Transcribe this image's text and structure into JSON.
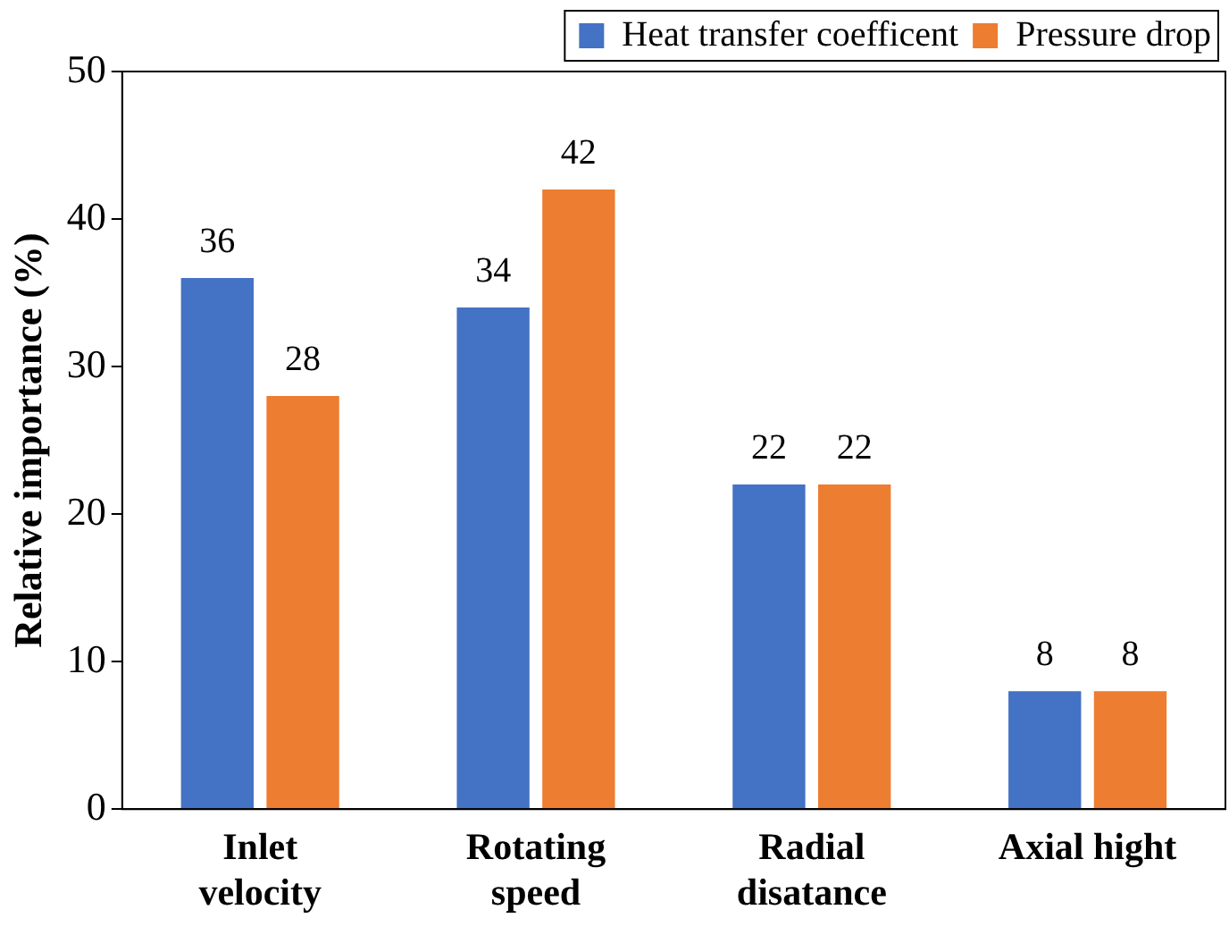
{
  "chart_data": {
    "type": "bar",
    "ylabel": "Relative importance (%)",
    "categories": [
      "Inlet\nvelocity",
      "Rotating\nspeed",
      "Radial\ndisatance",
      "Axial hight"
    ],
    "series": [
      {
        "name": "Heat transfer coefficent",
        "color": "#4472c4",
        "values": [
          36,
          34,
          22,
          8
        ]
      },
      {
        "name": "Pressure drop",
        "color": "#ed7d31",
        "values": [
          28,
          42,
          22,
          8
        ]
      }
    ],
    "ylim": [
      0,
      50
    ],
    "yticks": [
      0,
      10,
      20,
      30,
      40,
      50
    ],
    "grid": false,
    "legend": "top right",
    "data_labels": true
  }
}
